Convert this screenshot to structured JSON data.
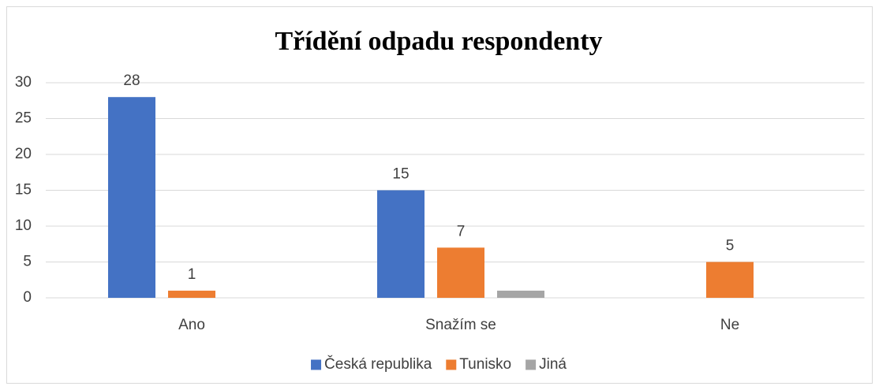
{
  "chart_data": {
    "type": "bar",
    "title": "Třídění odpadu respondenty",
    "categories": [
      "Ano",
      "Snažím se",
      "Ne"
    ],
    "series": [
      {
        "name": "Česká republika",
        "color": "#4472c4",
        "values": [
          28,
          15,
          null
        ],
        "value_labels": [
          "28",
          "15",
          null
        ]
      },
      {
        "name": "Tunisko",
        "color": "#ed7d31",
        "values": [
          1,
          7,
          5
        ],
        "value_labels": [
          "1",
          "7",
          "5"
        ]
      },
      {
        "name": "Jiná",
        "color": "#a5a5a5",
        "values": [
          null,
          1,
          null
        ],
        "value_labels": [
          null,
          null,
          null
        ]
      }
    ],
    "ylim": [
      0,
      30
    ],
    "yticks": [
      0,
      5,
      10,
      15,
      20,
      25,
      30
    ],
    "grid": true,
    "legend": "bottom"
  }
}
